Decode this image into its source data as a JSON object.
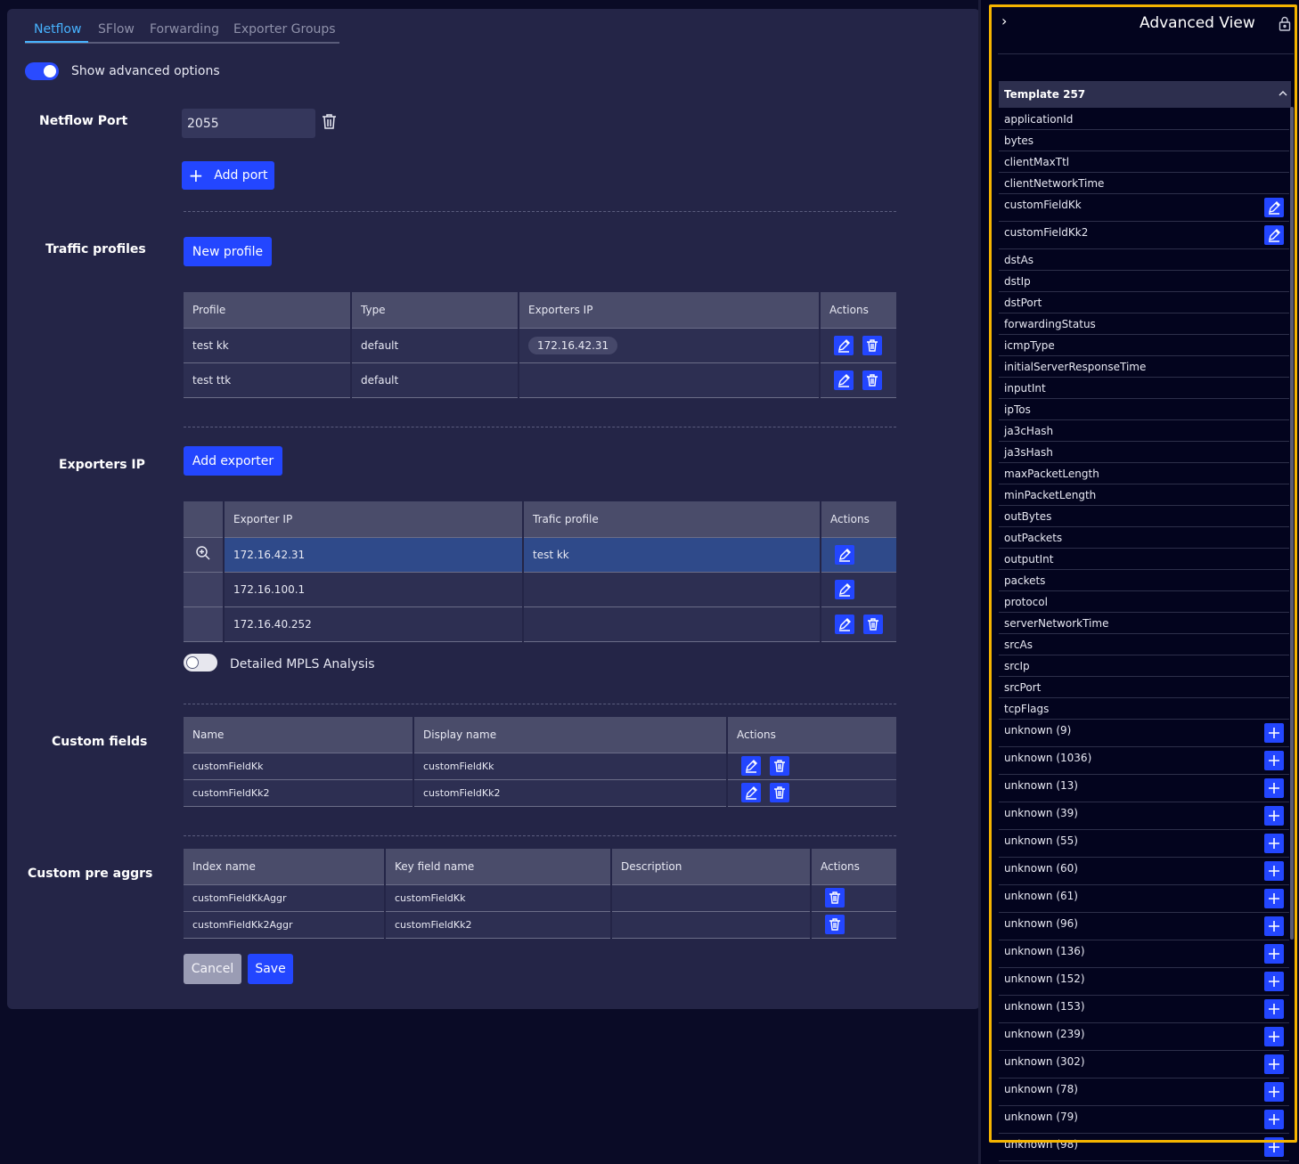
{
  "tabs": [
    "Netflow",
    "SFlow",
    "Forwarding",
    "Exporter Groups"
  ],
  "advanced_toggle_label": "Show advanced options",
  "netflow_port": {
    "label": "Netflow Port",
    "value": "2055",
    "add_label": "Add port"
  },
  "traffic_profiles": {
    "label": "Traffic profiles",
    "new_label": "New profile",
    "headers": [
      "Profile",
      "Type",
      "Exporters IP",
      "Actions"
    ],
    "rows": [
      {
        "profile": "test kk",
        "type": "default",
        "ip": "172.16.42.31"
      },
      {
        "profile": "test ttk",
        "type": "default",
        "ip": ""
      }
    ]
  },
  "exporters": {
    "label": "Exporters IP",
    "add_label": "Add exporter",
    "headers": [
      "Exporter IP",
      "Trafic profile",
      "Actions"
    ],
    "rows": [
      {
        "ip": "172.16.42.31",
        "profile": "test kk"
      },
      {
        "ip": "172.16.100.1",
        "profile": ""
      },
      {
        "ip": "172.16.40.252",
        "profile": ""
      }
    ]
  },
  "mpls_label": "Detailed MPLS Analysis",
  "custom_fields": {
    "label": "Custom fields",
    "headers": [
      "Name",
      "Display name",
      "Actions"
    ],
    "rows": [
      {
        "name": "customFieldKk",
        "display": "customFieldKk"
      },
      {
        "name": "customFieldKk2",
        "display": "customFieldKk2"
      }
    ]
  },
  "custom_pre_aggrs": {
    "label": "Custom pre aggrs",
    "headers": [
      "Index name",
      "Key field name",
      "Description",
      "Actions"
    ],
    "rows": [
      {
        "index": "customFieldKkAggr",
        "key": "customFieldKk",
        "desc": ""
      },
      {
        "index": "customFieldKk2Aggr",
        "key": "customFieldKk2",
        "desc": ""
      }
    ]
  },
  "buttons": {
    "cancel": "Cancel",
    "save": "Save"
  },
  "side_panel": {
    "title": "Advanced View",
    "template_title": "Template 257",
    "fields": [
      {
        "name": "applicationId",
        "action": ""
      },
      {
        "name": "bytes",
        "action": ""
      },
      {
        "name": "clientMaxTtl",
        "action": ""
      },
      {
        "name": "clientNetworkTime",
        "action": ""
      },
      {
        "name": "customFieldKk",
        "action": "edit"
      },
      {
        "name": "customFieldKk2",
        "action": "edit"
      },
      {
        "name": "dstAs",
        "action": ""
      },
      {
        "name": "dstIp",
        "action": ""
      },
      {
        "name": "dstPort",
        "action": ""
      },
      {
        "name": "forwardingStatus",
        "action": ""
      },
      {
        "name": "icmpType",
        "action": ""
      },
      {
        "name": "initialServerResponseTime",
        "action": ""
      },
      {
        "name": "inputInt",
        "action": ""
      },
      {
        "name": "ipTos",
        "action": ""
      },
      {
        "name": "ja3cHash",
        "action": ""
      },
      {
        "name": "ja3sHash",
        "action": ""
      },
      {
        "name": "maxPacketLength",
        "action": ""
      },
      {
        "name": "minPacketLength",
        "action": ""
      },
      {
        "name": "outBytes",
        "action": ""
      },
      {
        "name": "outPackets",
        "action": ""
      },
      {
        "name": "outputInt",
        "action": ""
      },
      {
        "name": "packets",
        "action": ""
      },
      {
        "name": "protocol",
        "action": ""
      },
      {
        "name": "serverNetworkTime",
        "action": ""
      },
      {
        "name": "srcAs",
        "action": ""
      },
      {
        "name": "srcIp",
        "action": ""
      },
      {
        "name": "srcPort",
        "action": ""
      },
      {
        "name": "tcpFlags",
        "action": ""
      },
      {
        "name": "unknown (9)",
        "action": "add"
      },
      {
        "name": "unknown (1036)",
        "action": "add"
      },
      {
        "name": "unknown (13)",
        "action": "add"
      },
      {
        "name": "unknown (39)",
        "action": "add"
      },
      {
        "name": "unknown (55)",
        "action": "add"
      },
      {
        "name": "unknown (60)",
        "action": "add"
      },
      {
        "name": "unknown (61)",
        "action": "add"
      },
      {
        "name": "unknown (96)",
        "action": "add"
      },
      {
        "name": "unknown (136)",
        "action": "add"
      },
      {
        "name": "unknown (152)",
        "action": "add"
      },
      {
        "name": "unknown (153)",
        "action": "add"
      },
      {
        "name": "unknown (239)",
        "action": "add"
      },
      {
        "name": "unknown (302)",
        "action": "add"
      },
      {
        "name": "unknown (78)",
        "action": "add"
      },
      {
        "name": "unknown (79)",
        "action": "add"
      },
      {
        "name": "unknown (98)",
        "action": "add"
      }
    ]
  },
  "colors": {
    "accent": "#2346ff",
    "tab_active": "#47b3ff",
    "highlight_frame": "#f5b400",
    "panel_bg": "#242547"
  }
}
